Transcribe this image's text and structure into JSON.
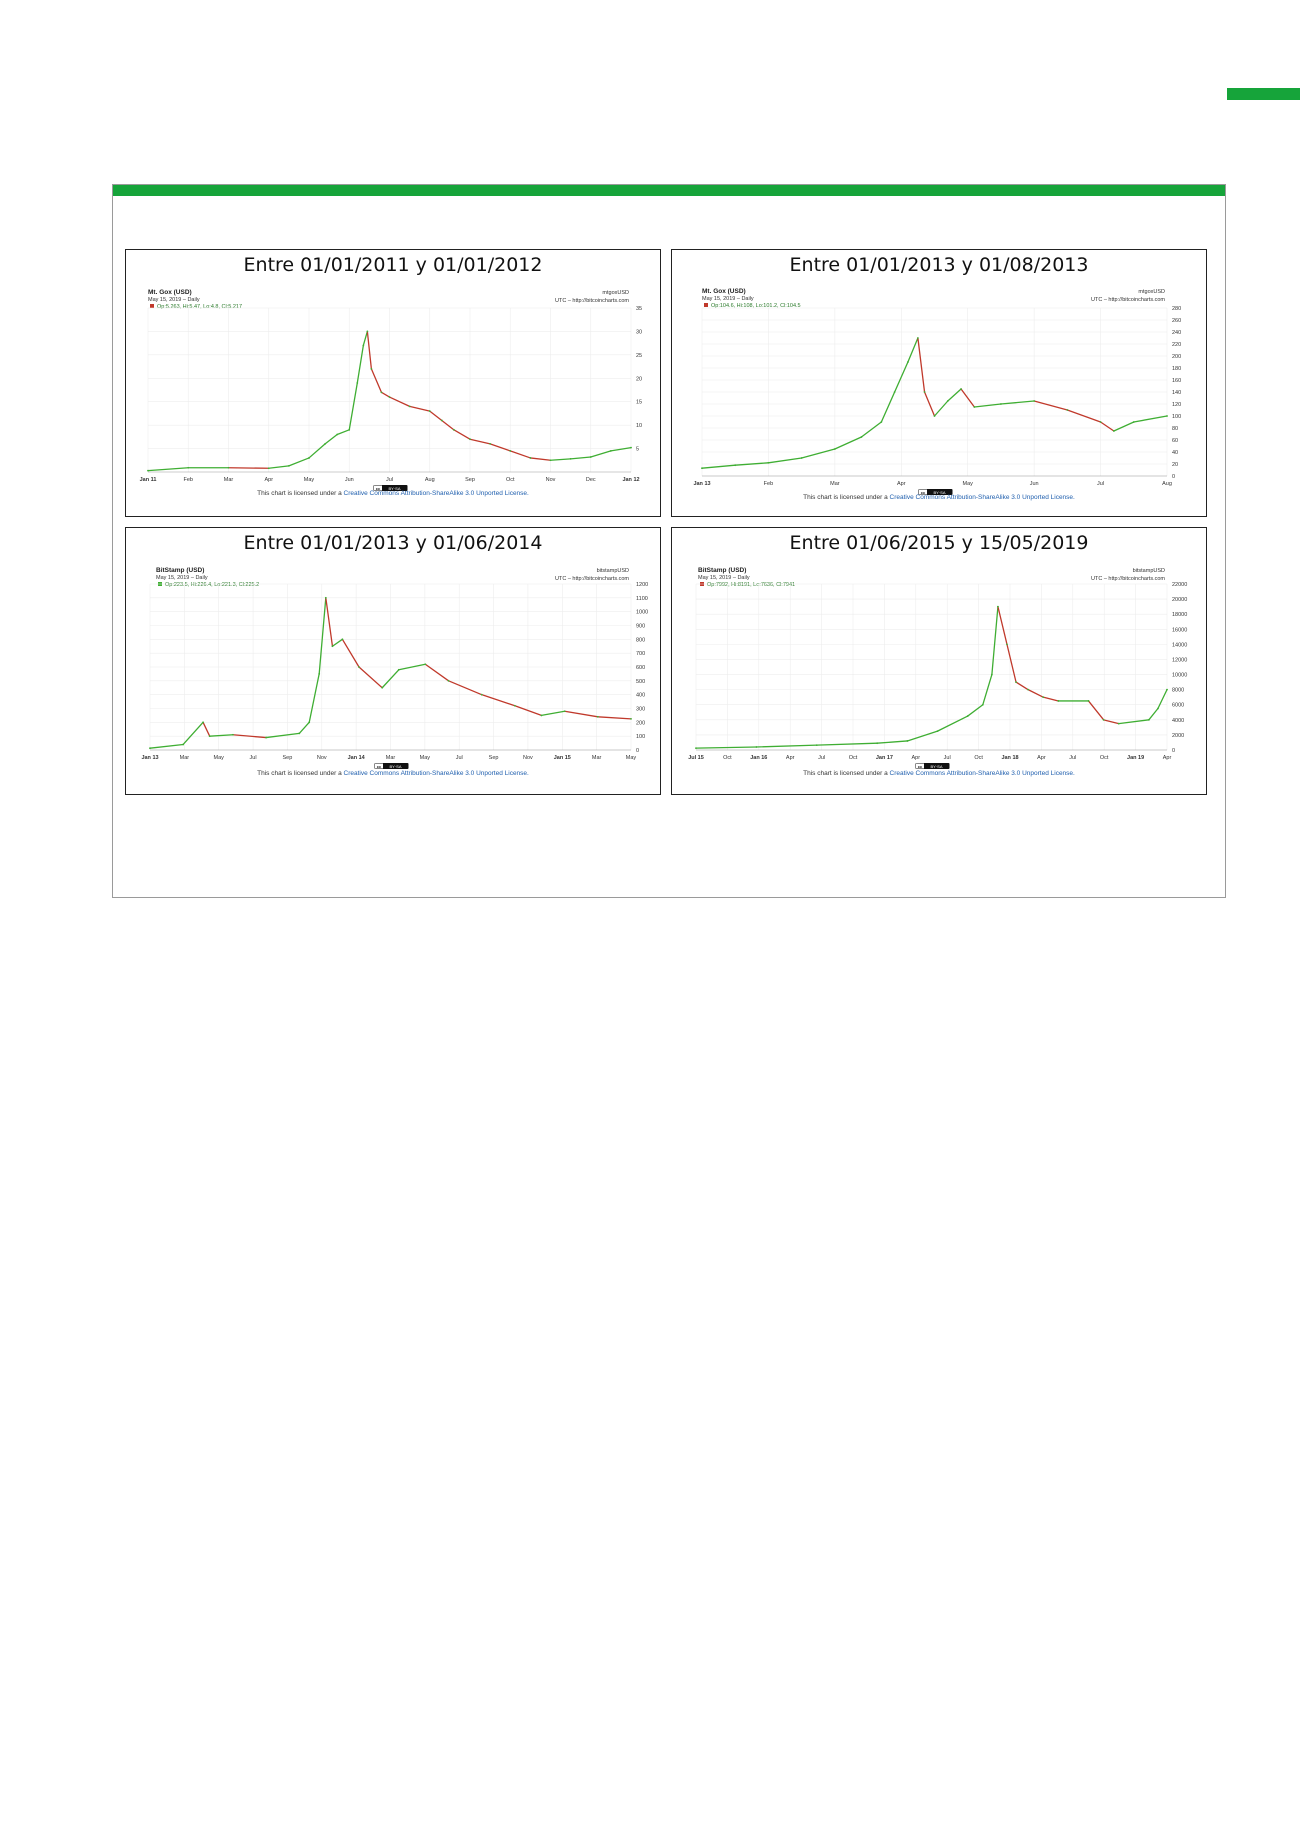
{
  "colors": {
    "accent": "#16a43a",
    "up": "#3fae33",
    "down": "#c0392b",
    "grid": "#ededed"
  },
  "license": {
    "prefix": "This chart is licensed under a",
    "link": "Creative Commons Attribution-ShareAlike 3.0 Unported License."
  },
  "badge": {
    "left": "cc",
    "right": "BY·SA"
  },
  "chart_data": [
    {
      "type": "line",
      "title": "Entre 01/01/2011 y 01/01/2012",
      "source_name": "Mt. Gox (USD)",
      "symbol": "mtgoxUSD",
      "date_line": "May 15, 2019 – Daily",
      "tz_line": "UTC – http://bitcoincharts.com",
      "ohlc_line": "Op:5.263, Hi:5.47, Lo:4.8, Cl:5.217",
      "legend_color": "#c0392b",
      "x_ticks": [
        "Jan 11",
        "Feb",
        "Mar",
        "Apr",
        "May",
        "Jun",
        "Jul",
        "Aug",
        "Sep",
        "Oct",
        "Nov",
        "Dec",
        "Jan 12"
      ],
      "y_ticks": [
        5,
        10,
        15,
        20,
        25,
        30,
        35
      ],
      "ylim": [
        0,
        35
      ],
      "xlim": [
        0,
        12
      ],
      "series": [
        {
          "values": [
            [
              0,
              0.3
            ],
            [
              1,
              0.9
            ],
            [
              2,
              0.9
            ],
            [
              3,
              0.8
            ],
            [
              3.5,
              1.3
            ],
            [
              4,
              3
            ],
            [
              4.4,
              6
            ],
            [
              4.7,
              8
            ],
            [
              5,
              9
            ],
            [
              5.2,
              19
            ],
            [
              5.35,
              27
            ],
            [
              5.45,
              30
            ],
            [
              5.55,
              22
            ],
            [
              5.8,
              17
            ],
            [
              6,
              16
            ],
            [
              6.5,
              14
            ],
            [
              7,
              13
            ],
            [
              7.3,
              11
            ],
            [
              7.6,
              9
            ],
            [
              8,
              7
            ],
            [
              8.5,
              6
            ],
            [
              9,
              4.5
            ],
            [
              9.5,
              3
            ],
            [
              10,
              2.5
            ],
            [
              10.5,
              2.8
            ],
            [
              11,
              3.2
            ],
            [
              11.5,
              4.5
            ],
            [
              12,
              5.2
            ]
          ]
        }
      ]
    },
    {
      "type": "line",
      "title": "Entre 01/01/2013 y 01/08/2013",
      "source_name": "Mt. Gox (USD)",
      "symbol": "mtgoxUSD",
      "date_line": "May 15, 2019 – Daily",
      "tz_line": "UTC – http://bitcoincharts.com",
      "ohlc_line": "Op:104.6, Hi:108, Lo:101.2, Cl:104.5",
      "legend_color": "#c0392b",
      "x_ticks": [
        "Jan 13",
        "Feb",
        "Mar",
        "Apr",
        "May",
        "Jun",
        "Jul",
        "Aug"
      ],
      "y_ticks": [
        0,
        20,
        40,
        60,
        80,
        100,
        120,
        140,
        160,
        180,
        200,
        220,
        240,
        260,
        280
      ],
      "ylim": [
        0,
        280
      ],
      "xlim": [
        0,
        7
      ],
      "series": [
        {
          "values": [
            [
              0,
              13
            ],
            [
              0.5,
              18
            ],
            [
              1,
              22
            ],
            [
              1.5,
              30
            ],
            [
              2,
              45
            ],
            [
              2.4,
              65
            ],
            [
              2.7,
              90
            ],
            [
              2.9,
              140
            ],
            [
              3.1,
              190
            ],
            [
              3.25,
              230
            ],
            [
              3.35,
              140
            ],
            [
              3.5,
              100
            ],
            [
              3.7,
              125
            ],
            [
              3.9,
              145
            ],
            [
              4.1,
              115
            ],
            [
              4.5,
              120
            ],
            [
              5,
              125
            ],
            [
              5.5,
              110
            ],
            [
              6,
              90
            ],
            [
              6.2,
              75
            ],
            [
              6.5,
              90
            ],
            [
              7,
              100
            ]
          ]
        }
      ]
    },
    {
      "type": "line",
      "title": "Entre 01/01/2013 y 01/06/2014",
      "source_name": "BitStamp (USD)",
      "symbol": "bitstampUSD",
      "date_line": "May 15, 2019 – Daily",
      "tz_line": "UTC – http://bitcoincharts.com",
      "ohlc_line": "Op:223.5, Hi:226.4, Lo:221.3, Cl:225.2",
      "legend_color": "#3fae33",
      "x_ticks": [
        "Jan 13",
        "Mar",
        "May",
        "Jul",
        "Sep",
        "Nov",
        "Jan 14",
        "Mar",
        "May",
        "Jul",
        "Sep",
        "Nov",
        "Jan 15",
        "Mar",
        "May"
      ],
      "y_ticks": [
        0,
        100,
        200,
        300,
        400,
        500,
        600,
        700,
        800,
        900,
        1000,
        1100,
        1200
      ],
      "ylim": [
        0,
        1200
      ],
      "xlim": [
        0,
        14.5
      ],
      "series": [
        {
          "values": [
            [
              0,
              13
            ],
            [
              1,
              40
            ],
            [
              1.6,
              200
            ],
            [
              1.8,
              100
            ],
            [
              2.5,
              110
            ],
            [
              3.5,
              90
            ],
            [
              4.5,
              120
            ],
            [
              4.8,
              200
            ],
            [
              5.1,
              550
            ],
            [
              5.3,
              1100
            ],
            [
              5.5,
              750
            ],
            [
              5.8,
              800
            ],
            [
              6.3,
              600
            ],
            [
              7,
              450
            ],
            [
              7.5,
              580
            ],
            [
              8.3,
              620
            ],
            [
              9,
              500
            ],
            [
              10,
              400
            ],
            [
              11,
              320
            ],
            [
              11.8,
              250
            ],
            [
              12.5,
              280
            ],
            [
              13.5,
              240
            ],
            [
              14.5,
              225
            ]
          ]
        }
      ]
    },
    {
      "type": "line",
      "title": "Entre 01/06/2015 y 15/05/2019",
      "source_name": "BitStamp (USD)",
      "symbol": "bitstampUSD",
      "date_line": "May 15, 2019 – Daily",
      "tz_line": "UTC – http://bitcoincharts.com",
      "ohlc_line": "Op:7992, Hi:8191, Lo:7636, Cl:7941",
      "legend_color": "#c0392b",
      "x_ticks": [
        "Jul 15",
        "Oct",
        "Jan 16",
        "Apr",
        "Jul",
        "Oct",
        "Jan 17",
        "Apr",
        "Jul",
        "Oct",
        "Jan 18",
        "Apr",
        "Jul",
        "Oct",
        "Jan 19",
        "Apr"
      ],
      "y_ticks": [
        0,
        2000,
        4000,
        6000,
        8000,
        10000,
        12000,
        14000,
        16000,
        18000,
        20000,
        22000
      ],
      "ylim": [
        0,
        22000
      ],
      "xlim": [
        0,
        15.6
      ],
      "series": [
        {
          "values": [
            [
              0,
              250
            ],
            [
              2,
              400
            ],
            [
              4,
              650
            ],
            [
              6,
              900
            ],
            [
              7,
              1200
            ],
            [
              8,
              2500
            ],
            [
              9,
              4500
            ],
            [
              9.5,
              6000
            ],
            [
              9.8,
              10000
            ],
            [
              10,
              19000
            ],
            [
              10.3,
              14000
            ],
            [
              10.6,
              9000
            ],
            [
              11,
              8000
            ],
            [
              11.5,
              7000
            ],
            [
              12,
              6500
            ],
            [
              13,
              6500
            ],
            [
              13.5,
              4000
            ],
            [
              14,
              3500
            ],
            [
              15,
              4000
            ],
            [
              15.3,
              5500
            ],
            [
              15.6,
              8000
            ]
          ]
        }
      ]
    }
  ]
}
